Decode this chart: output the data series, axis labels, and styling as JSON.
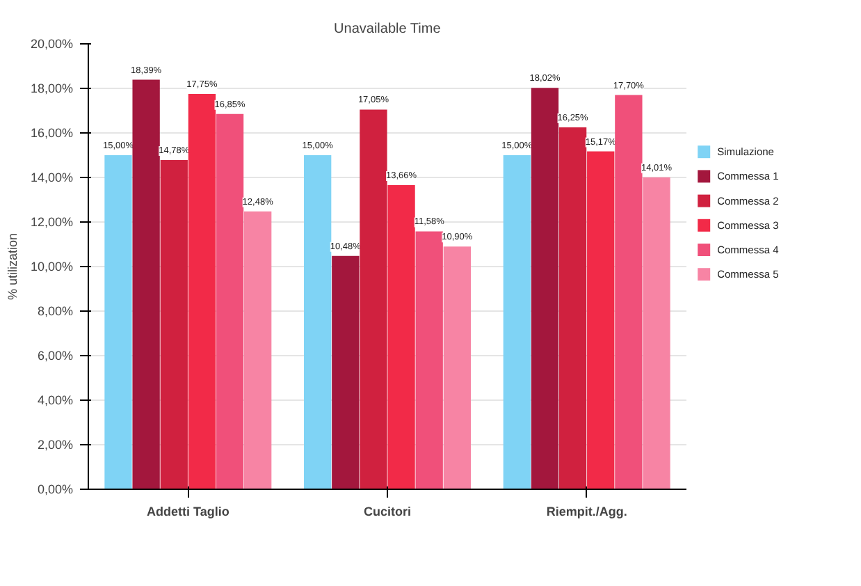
{
  "chart_data": {
    "type": "bar",
    "title": "Unavailable Time",
    "ylabel": "% utilization",
    "categories": [
      "Addetti Taglio",
      "Cucitori",
      "Riempit./Agg."
    ],
    "series": [
      {
        "name": "Simulazione",
        "color": "#7fd3f5",
        "values": [
          15.0,
          15.0,
          15.0
        ],
        "value_labels": [
          "15,00%",
          "15,00%",
          "15,00%"
        ]
      },
      {
        "name": "Commessa 1",
        "color": "#a3173d",
        "values": [
          18.39,
          10.48,
          18.02
        ],
        "value_labels": [
          "18,39%",
          "10,48%",
          "18,02%"
        ]
      },
      {
        "name": "Commessa 2",
        "color": "#d0213f",
        "values": [
          14.78,
          17.05,
          16.25
        ],
        "value_labels": [
          "14,78%",
          "17,05%",
          "16,25%"
        ]
      },
      {
        "name": "Commessa 3",
        "color": "#f22a48",
        "values": [
          17.75,
          13.66,
          15.17
        ],
        "value_labels": [
          "17,75%",
          "13,66%",
          "15,17%"
        ]
      },
      {
        "name": "Commessa 4",
        "color": "#f0507a",
        "values": [
          16.85,
          11.58,
          17.7
        ],
        "value_labels": [
          "16,85%",
          "11,58%",
          "17,70%"
        ]
      },
      {
        "name": "Commessa 5",
        "color": "#f784a4",
        "values": [
          12.48,
          10.9,
          14.01
        ],
        "value_labels": [
          "12,48%",
          "10,90%",
          "14,01%"
        ]
      }
    ],
    "ylim": [
      0,
      20
    ],
    "yticks": [
      {
        "value": 0,
        "label": "0,00%"
      },
      {
        "value": 2,
        "label": "2,00%"
      },
      {
        "value": 4,
        "label": "4,00%"
      },
      {
        "value": 6,
        "label": "6,00%"
      },
      {
        "value": 8,
        "label": "8,00%"
      },
      {
        "value": 10,
        "label": "10,00%"
      },
      {
        "value": 12,
        "label": "12,00%"
      },
      {
        "value": 14,
        "label": "14,00%"
      },
      {
        "value": 16,
        "label": "16,00%"
      },
      {
        "value": 18,
        "label": "18,00%"
      },
      {
        "value": 20,
        "label": "20,00%"
      }
    ],
    "grid": "y",
    "legend": "right"
  }
}
